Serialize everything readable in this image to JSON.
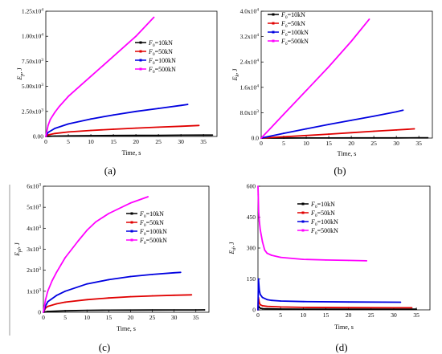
{
  "figure": {
    "panels": [
      {
        "id": "a",
        "label": "(a)"
      },
      {
        "id": "b",
        "label": "(b)"
      },
      {
        "id": "c",
        "label": "(c)"
      },
      {
        "id": "d",
        "label": "(d)"
      }
    ]
  },
  "chart_data": [
    {
      "panel": "(a)",
      "type": "line",
      "xlabel": "Time, s",
      "ylabel_base": "E",
      "ylabel_sub": "p",
      "ylabel_unit": ", J",
      "xlim": [
        0,
        38
      ],
      "ylim": [
        0,
        12500
      ],
      "x_ticks": [
        "0",
        "5",
        "10",
        "15",
        "20",
        "25",
        "30",
        "35"
      ],
      "y_ticks": [
        {
          "v": 0,
          "base": "0.00",
          "exp": ""
        },
        {
          "v": 2500,
          "base": "2.50x10",
          "exp": "3"
        },
        {
          "v": 5000,
          "base": "5.00x10",
          "exp": "3"
        },
        {
          "v": 7500,
          "base": "7.50x10",
          "exp": "3"
        },
        {
          "v": 10000,
          "base": "1.00x10",
          "exp": "4"
        },
        {
          "v": 12500,
          "base": "1.25x10",
          "exp": "4"
        }
      ],
      "series": [
        {
          "name": "=10kN",
          "color": "#000000",
          "x": [
            0,
            0.5,
            2,
            5,
            10,
            15,
            20,
            25,
            30,
            35,
            37
          ],
          "y": [
            0,
            20,
            40,
            60,
            80,
            95,
            105,
            115,
            125,
            135,
            140
          ]
        },
        {
          "name": "=50kN",
          "color": "#e00000",
          "x": [
            0,
            0.5,
            2,
            5,
            10,
            15,
            20,
            25,
            30,
            34
          ],
          "y": [
            0,
            150,
            300,
            450,
            600,
            720,
            830,
            930,
            1020,
            1100
          ]
        },
        {
          "name": "=100kN",
          "color": "#0000e0",
          "x": [
            0,
            0.5,
            2,
            5,
            10,
            15,
            20,
            25,
            30,
            31.5
          ],
          "y": [
            0,
            400,
            800,
            1250,
            1750,
            2150,
            2500,
            2800,
            3100,
            3200
          ]
        },
        {
          "name": "=500kN",
          "color": "#ff00ff",
          "x": [
            0,
            0.5,
            1,
            2,
            3,
            5,
            8,
            10,
            15,
            20,
            24
          ],
          "y": [
            0,
            1100,
            1700,
            2400,
            3000,
            4000,
            5200,
            6000,
            8000,
            10000,
            11900
          ]
        }
      ]
    },
    {
      "panel": "(b)",
      "type": "line",
      "xlabel": "Time, s",
      "ylabel_base": "E",
      "ylabel_sub": "k",
      "ylabel_unit": ", J",
      "xlim": [
        0,
        38
      ],
      "ylim": [
        0,
        40000
      ],
      "x_ticks": [
        "0",
        "5",
        "10",
        "15",
        "20",
        "25",
        "30",
        "35"
      ],
      "y_ticks": [
        {
          "v": 0,
          "base": "0.0",
          "exp": ""
        },
        {
          "v": 8000,
          "base": "8.0x10",
          "exp": "3"
        },
        {
          "v": 16000,
          "base": "1.6x10",
          "exp": "4"
        },
        {
          "v": 24000,
          "base": "2.4x10",
          "exp": "4"
        },
        {
          "v": 32000,
          "base": "3.2x10",
          "exp": "4"
        },
        {
          "v": 40000,
          "base": "4.0x10",
          "exp": "4"
        }
      ],
      "series": [
        {
          "name": "=10kN",
          "color": "#000000",
          "x": [
            0,
            5,
            10,
            15,
            20,
            25,
            30,
            35,
            37
          ],
          "y": [
            0,
            10,
            20,
            30,
            40,
            50,
            60,
            70,
            75
          ]
        },
        {
          "name": "=50kN",
          "color": "#e00000",
          "x": [
            0,
            5,
            10,
            15,
            20,
            25,
            30,
            34
          ],
          "y": [
            0,
            400,
            800,
            1250,
            1700,
            2150,
            2550,
            2900
          ]
        },
        {
          "name": "=100kN",
          "color": "#0000e0",
          "x": [
            0,
            5,
            10,
            15,
            20,
            25,
            30,
            31.5
          ],
          "y": [
            0,
            1500,
            2900,
            4300,
            5600,
            6900,
            8300,
            8800
          ]
        },
        {
          "name": "=500kN",
          "color": "#ff00ff",
          "x": [
            0,
            2,
            5,
            10,
            15,
            20,
            24
          ],
          "y": [
            0,
            3000,
            7500,
            15000,
            22500,
            30500,
            37500
          ]
        }
      ]
    },
    {
      "panel": "(c)",
      "type": "line",
      "xlabel": "Time, s",
      "ylabel_base": "E",
      "ylabel_sub": "pl",
      "ylabel_unit": ", J",
      "xlim": [
        0,
        38
      ],
      "ylim": [
        0,
        6000
      ],
      "x_ticks": [
        "0",
        "5",
        "10",
        "15",
        "20",
        "25",
        "30",
        "35"
      ],
      "y_ticks": [
        {
          "v": 0,
          "base": "0",
          "exp": ""
        },
        {
          "v": 1000,
          "base": "1x10",
          "exp": "3"
        },
        {
          "v": 2000,
          "base": "2x10",
          "exp": "3"
        },
        {
          "v": 3000,
          "base": "3x10",
          "exp": "3"
        },
        {
          "v": 4000,
          "base": "4x10",
          "exp": "3"
        },
        {
          "v": 5000,
          "base": "5x10",
          "exp": "3"
        },
        {
          "v": 6000,
          "base": "6x10",
          "exp": "3"
        }
      ],
      "series": [
        {
          "name": "=10kN",
          "color": "#000000",
          "x": [
            0,
            1,
            5,
            10,
            15,
            20,
            25,
            30,
            35,
            37
          ],
          "y": [
            0,
            40,
            70,
            90,
            100,
            105,
            108,
            110,
            112,
            113
          ]
        },
        {
          "name": "=50kN",
          "color": "#e00000",
          "x": [
            0,
            0.5,
            1,
            3,
            5,
            10,
            15,
            20,
            25,
            30,
            34
          ],
          "y": [
            0,
            200,
            280,
            400,
            480,
            600,
            680,
            740,
            780,
            810,
            830
          ]
        },
        {
          "name": "=100kN",
          "color": "#0000e0",
          "x": [
            0,
            0.5,
            1,
            3,
            5,
            10,
            15,
            20,
            25,
            30,
            31.5
          ],
          "y": [
            0,
            300,
            500,
            800,
            1000,
            1350,
            1550,
            1700,
            1800,
            1880,
            1900
          ]
        },
        {
          "name": "=500kN",
          "color": "#ff00ff",
          "x": [
            0,
            0.5,
            1,
            2,
            3,
            5,
            8,
            10,
            12,
            15,
            20,
            24
          ],
          "y": [
            0,
            600,
            1000,
            1500,
            1900,
            2600,
            3400,
            3900,
            4300,
            4700,
            5200,
            5500
          ]
        }
      ]
    },
    {
      "panel": "(d)",
      "type": "line",
      "xlabel": "Time, s",
      "ylabel_base": "E",
      "ylabel_sub": "d",
      "ylabel_unit": ", J",
      "xlim": [
        0,
        38
      ],
      "ylim": [
        0,
        600
      ],
      "x_ticks": [
        "0",
        "5",
        "10",
        "15",
        "20",
        "25",
        "30",
        "35"
      ],
      "y_ticks": [
        {
          "v": 0,
          "base": "0",
          "exp": ""
        },
        {
          "v": 150,
          "base": "150",
          "exp": ""
        },
        {
          "v": 300,
          "base": "300",
          "exp": ""
        },
        {
          "v": 450,
          "base": "450",
          "exp": ""
        },
        {
          "v": 600,
          "base": "600",
          "exp": ""
        }
      ],
      "series": [
        {
          "name": "=10kN",
          "color": "#000000",
          "x": [
            0,
            0.1,
            0.3,
            0.5,
            1,
            2,
            5,
            10,
            20,
            30,
            35
          ],
          "y": [
            0,
            20,
            12,
            8,
            6,
            5,
            4,
            3.5,
            3,
            3,
            3
          ]
        },
        {
          "name": "=50kN",
          "color": "#e00000",
          "x": [
            0,
            0.1,
            0.3,
            0.5,
            1,
            2,
            5,
            10,
            20,
            30,
            34
          ],
          "y": [
            0,
            60,
            35,
            25,
            20,
            17,
            14,
            12,
            11,
            10,
            10
          ]
        },
        {
          "name": "=100kN",
          "color": "#0000e0",
          "x": [
            0,
            0.1,
            0.3,
            0.5,
            1,
            2,
            3,
            5,
            10,
            20,
            31.5
          ],
          "y": [
            0,
            150,
            95,
            75,
            60,
            50,
            46,
            43,
            40,
            38,
            37
          ]
        },
        {
          "name": "=500kN",
          "color": "#ff00ff",
          "x": [
            0,
            0.05,
            0.15,
            0.3,
            0.5,
            1,
            1.5,
            2,
            3,
            5,
            10,
            15,
            20,
            24
          ],
          "y": [
            600,
            560,
            480,
            430,
            390,
            330,
            290,
            275,
            265,
            255,
            245,
            242,
            240,
            238
          ]
        }
      ]
    }
  ],
  "legend": {
    "label_base": "F",
    "label_sub": "0"
  }
}
